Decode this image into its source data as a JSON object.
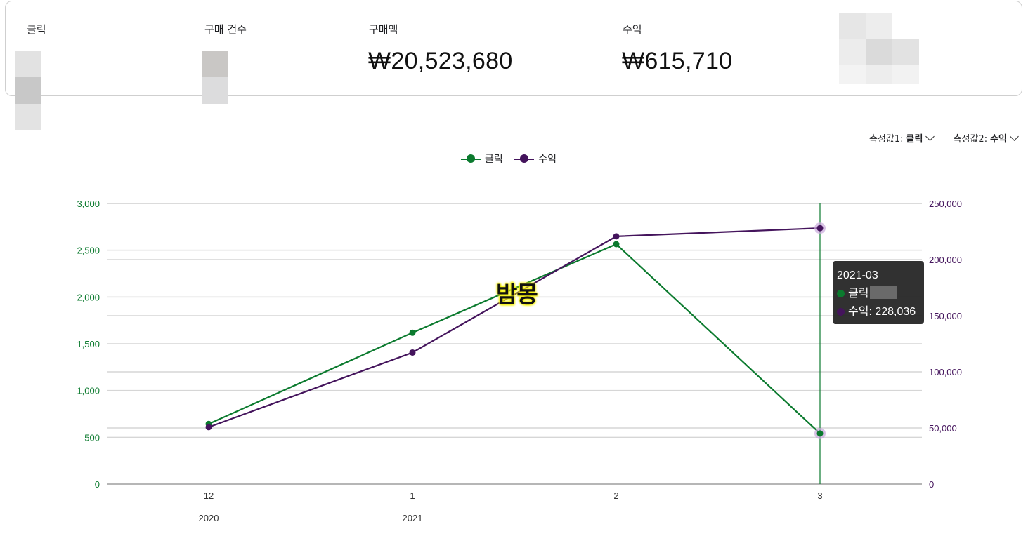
{
  "summary": {
    "metrics": [
      {
        "label": "클릭",
        "value": ""
      },
      {
        "label": "구매 건수",
        "value": ""
      },
      {
        "label": "구매액",
        "value": "₩20,523,680"
      },
      {
        "label": "수익",
        "value": "₩615,710"
      }
    ]
  },
  "controls": {
    "measure1_label": "측정값1:",
    "measure1_value": "클릭",
    "measure2_label": "측정값2:",
    "measure2_value": "수익"
  },
  "legend": [
    {
      "name": "클릭",
      "color": "#0b7a2e"
    },
    {
      "name": "수익",
      "color": "#44145c"
    }
  ],
  "tooltip": {
    "title": "2021-03",
    "line1": "클릭",
    "line2": "수익: 228,036"
  },
  "watermark": "밤몽",
  "chart_data": {
    "type": "line",
    "categories": [
      "12",
      "1",
      "2",
      "3"
    ],
    "category_years": [
      "2020",
      "2021",
      "",
      ""
    ],
    "series": [
      {
        "name": "클릭",
        "axis": "left",
        "color": "#0b7a2e",
        "values": [
          643,
          1618,
          2565,
          541
        ]
      },
      {
        "name": "수익",
        "axis": "right",
        "color": "#44145c",
        "values": [
          50700,
          117200,
          220700,
          228036
        ]
      }
    ],
    "y_left": {
      "min": 0,
      "max": 3000,
      "ticks": [
        0,
        500,
        1000,
        1500,
        2000,
        2500,
        3000
      ],
      "tick_labels": [
        "0",
        "500",
        "1,000",
        "1,500",
        "2,000",
        "2,500",
        "3,000"
      ],
      "color": "#0b7a2e"
    },
    "y_right": {
      "min": 0,
      "max": 250000,
      "ticks": [
        0,
        50000,
        100000,
        150000,
        200000,
        250000
      ],
      "tick_labels": [
        "0",
        "50,000",
        "100,000",
        "150,000",
        "200,000",
        "250,000"
      ],
      "color": "#44145c"
    },
    "grid": true,
    "highlighted_category": "3"
  }
}
